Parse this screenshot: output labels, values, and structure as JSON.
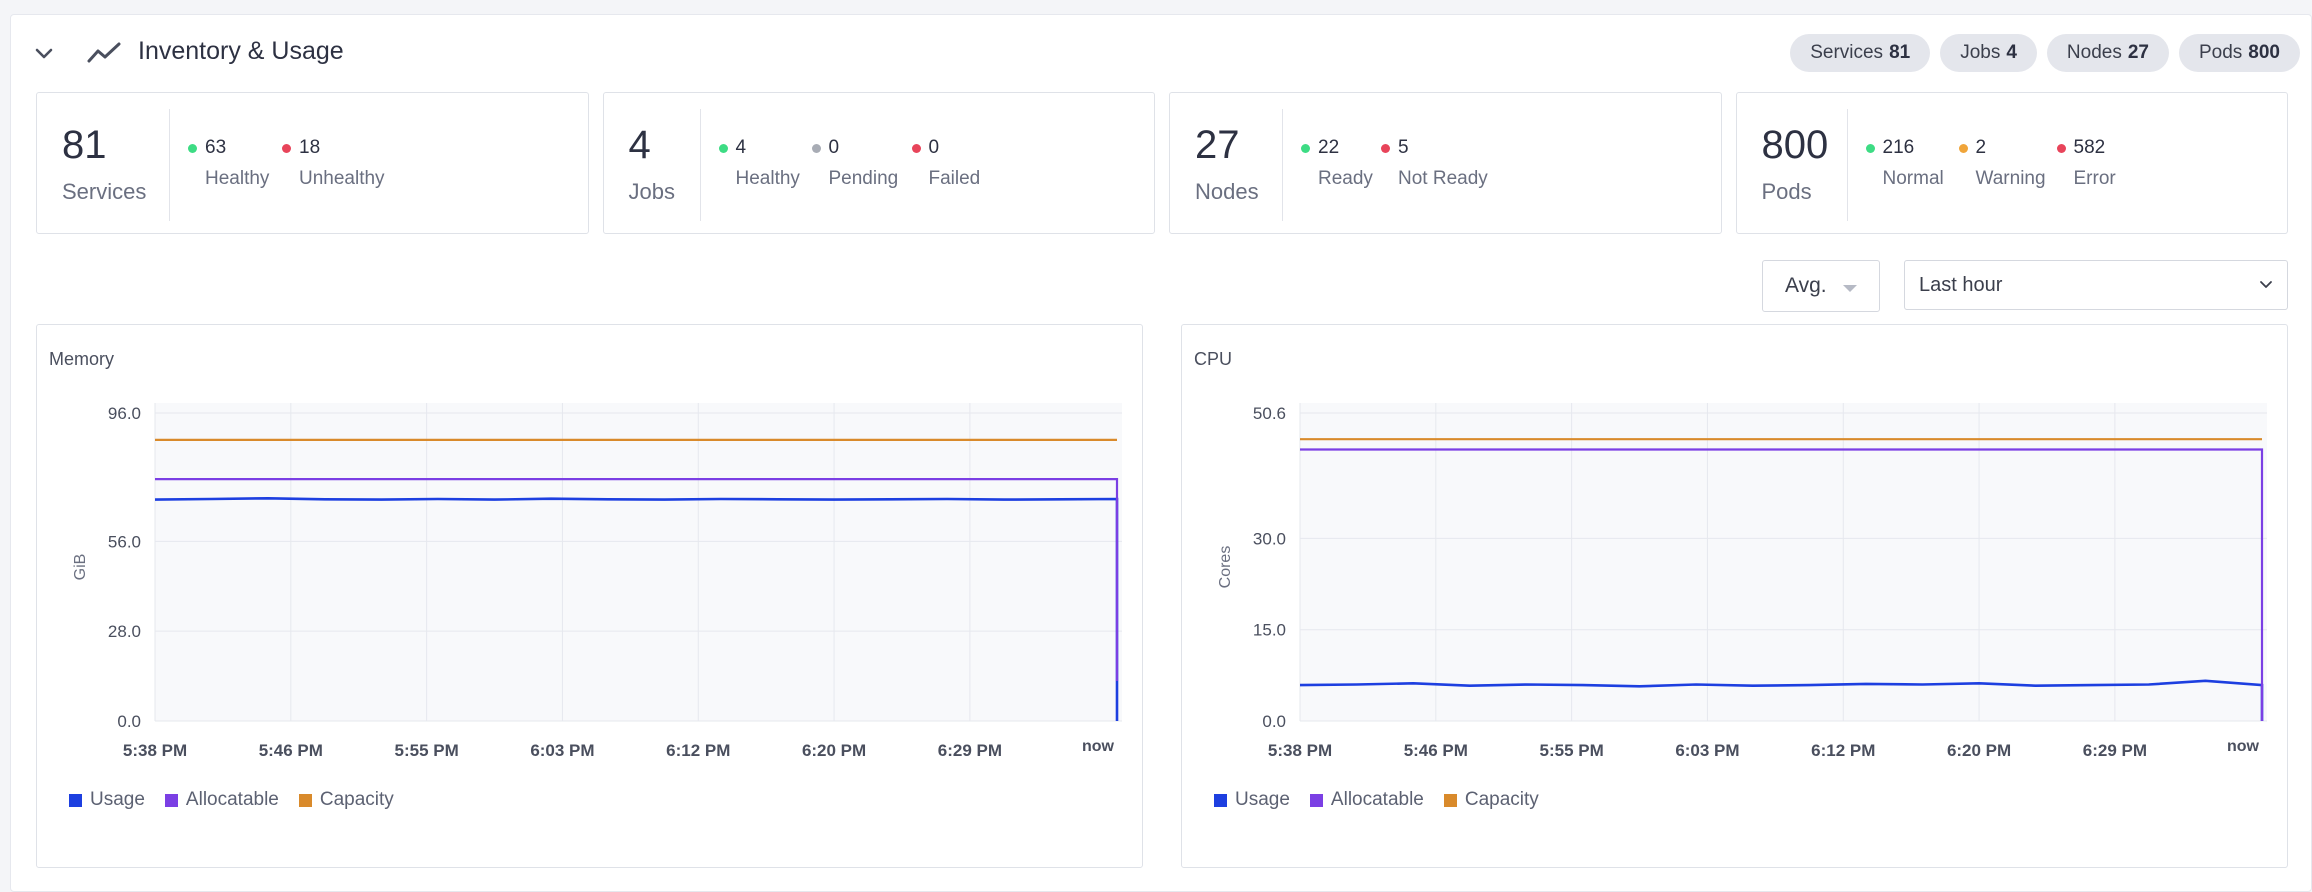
{
  "header": {
    "title": "Inventory & Usage",
    "pills": [
      {
        "label": "Services",
        "value": "81"
      },
      {
        "label": "Jobs",
        "value": "4"
      },
      {
        "label": "Nodes",
        "value": "27"
      },
      {
        "label": "Pods",
        "value": "800"
      }
    ]
  },
  "cards": [
    {
      "big": "81",
      "label": "Services",
      "stats": [
        {
          "value": "63",
          "label": "Healthy",
          "color": "#3ddc84"
        },
        {
          "value": "18",
          "label": "Unhealthy",
          "color": "#e8445a"
        }
      ]
    },
    {
      "big": "4",
      "label": "Jobs",
      "stats": [
        {
          "value": "4",
          "label": "Healthy",
          "color": "#3ddc84"
        },
        {
          "value": "0",
          "label": "Pending",
          "color": "#a8acb5"
        },
        {
          "value": "0",
          "label": "Failed",
          "color": "#e8445a"
        }
      ]
    },
    {
      "big": "27",
      "label": "Nodes",
      "stats": [
        {
          "value": "22",
          "label": "Ready",
          "color": "#3ddc84"
        },
        {
          "value": "5",
          "label": "Not Ready",
          "color": "#e8445a"
        }
      ]
    },
    {
      "big": "800",
      "label": "Pods",
      "stats": [
        {
          "value": "216",
          "label": "Normal",
          "color": "#3ddc84"
        },
        {
          "value": "2",
          "label": "Warning",
          "color": "#f0a53a"
        },
        {
          "value": "582",
          "label": "Error",
          "color": "#e8445a"
        }
      ]
    }
  ],
  "controls": {
    "aggregation": "Avg.",
    "time_range": "Last hour"
  },
  "colors": {
    "usage": "#1d3fe0",
    "allocatable": "#7b3fe4",
    "capacity": "#d98a2b"
  },
  "chart_data": [
    {
      "type": "line",
      "title": "Memory",
      "ylabel": "GiB",
      "ylim": [
        0,
        96
      ],
      "yticks": [
        "96.0",
        "56.0",
        "28.0",
        "0.0"
      ],
      "ytick_values": [
        96,
        56,
        28,
        0
      ],
      "xticks": [
        "5:38 PM",
        "5:46 PM",
        "5:55 PM",
        "6:03 PM",
        "6:12 PM",
        "6:20 PM",
        "6:29 PM",
        "now"
      ],
      "series": [
        {
          "name": "Usage",
          "values": [
            69.0,
            69.2,
            69.4,
            69.1,
            69.0,
            69.2,
            69.0,
            69.3,
            69.1,
            69.0,
            69.2,
            69.1,
            69.0,
            69.1,
            69.2,
            69.0,
            69.1,
            69.2
          ]
        },
        {
          "name": "Allocatable",
          "values": [
            75.4,
            75.4,
            75.4,
            75.4,
            75.4,
            75.4,
            75.4,
            75.4,
            75.4,
            75.4,
            75.4,
            75.4,
            75.4,
            75.4,
            75.4,
            75.4,
            75.4,
            75.4
          ]
        },
        {
          "name": "Capacity",
          "values": [
            87.6,
            87.6,
            87.6,
            87.6,
            87.6,
            87.6,
            87.6,
            87.6,
            87.6,
            87.6,
            87.6,
            87.6,
            87.6,
            87.6,
            87.6,
            87.6,
            87.6,
            87.6
          ]
        }
      ],
      "legend": [
        "Usage",
        "Allocatable",
        "Capacity"
      ]
    },
    {
      "type": "line",
      "title": "CPU",
      "ylabel": "Cores",
      "ylim": [
        0,
        50.6
      ],
      "yticks": [
        "50.6",
        "30.0",
        "15.0",
        "0.0"
      ],
      "ytick_values": [
        50.6,
        30,
        15,
        0
      ],
      "xticks": [
        "5:38 PM",
        "5:46 PM",
        "5:55 PM",
        "6:03 PM",
        "6:12 PM",
        "6:20 PM",
        "6:29 PM",
        "now"
      ],
      "series": [
        {
          "name": "Usage",
          "values": [
            5.9,
            6.0,
            6.2,
            5.8,
            6.0,
            5.9,
            5.7,
            6.0,
            5.8,
            5.9,
            6.1,
            6.0,
            6.2,
            5.8,
            5.9,
            6.0,
            6.6,
            5.9
          ]
        },
        {
          "name": "Allocatable",
          "values": [
            44.6,
            44.6,
            44.6,
            44.6,
            44.6,
            44.6,
            44.6,
            44.6,
            44.6,
            44.6,
            44.6,
            44.6,
            44.6,
            44.6,
            44.6,
            44.6,
            44.6,
            44.6
          ]
        },
        {
          "name": "Capacity",
          "values": [
            46.3,
            46.3,
            46.3,
            46.3,
            46.3,
            46.3,
            46.3,
            46.3,
            46.3,
            46.3,
            46.3,
            46.3,
            46.3,
            46.3,
            46.3,
            46.3,
            46.3,
            46.3
          ]
        }
      ],
      "legend": [
        "Usage",
        "Allocatable",
        "Capacity"
      ]
    }
  ]
}
